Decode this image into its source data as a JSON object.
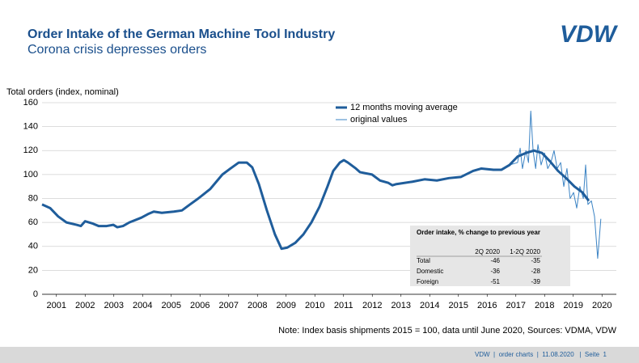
{
  "header": {
    "title": "Order Intake of the German Machine Tool Industry",
    "subtitle": "Corona crisis depresses orders",
    "logo": "VDW"
  },
  "chart_data": {
    "type": "line",
    "y_label": "Total orders (index, nominal)",
    "xlim": [
      2001,
      2021
    ],
    "ylim": [
      0,
      160
    ],
    "yticks": [
      0,
      20,
      40,
      60,
      80,
      100,
      120,
      140,
      160
    ],
    "xticks": [
      {
        "value": 2001.5,
        "label": "2001"
      },
      {
        "value": 2002.5,
        "label": "2002"
      },
      {
        "value": 2003.5,
        "label": "2003"
      },
      {
        "value": 2004.5,
        "label": "2004"
      },
      {
        "value": 2005.5,
        "label": "2005"
      },
      {
        "value": 2006.5,
        "label": "2006"
      },
      {
        "value": 2007.5,
        "label": "2007"
      },
      {
        "value": 2008.5,
        "label": "2008"
      },
      {
        "value": 2009.5,
        "label": "2009"
      },
      {
        "value": 2010.5,
        "label": "2010"
      },
      {
        "value": 2011.5,
        "label": "2011"
      },
      {
        "value": 2012.5,
        "label": "2012"
      },
      {
        "value": 2013.5,
        "label": "2013"
      },
      {
        "value": 2014.5,
        "label": "2014"
      },
      {
        "value": 2015.5,
        "label": "2015"
      },
      {
        "value": 2016.5,
        "label": "2016"
      },
      {
        "value": 2017.5,
        "label": "2017"
      },
      {
        "value": 2018.5,
        "label": "2018"
      },
      {
        "value": 2019.5,
        "label": "2019"
      },
      {
        "value": 2020.5,
        "label": "2020"
      }
    ],
    "grid": true,
    "series": [
      {
        "name": "12 months moving average",
        "color": "#1f5d9b",
        "width": 3,
        "x": [
          2001.0,
          2001.28,
          2001.56,
          2001.85,
          2002.2,
          2002.35,
          2002.5,
          2002.77,
          2002.97,
          2003.25,
          2003.48,
          2003.62,
          2003.82,
          2004.04,
          2004.46,
          2004.69,
          2004.89,
          2005.17,
          2005.59,
          2005.87,
          2006.15,
          2006.44,
          2006.86,
          2007.28,
          2007.56,
          2007.85,
          2008.13,
          2008.32,
          2008.55,
          2008.83,
          2009.11,
          2009.34,
          2009.54,
          2009.82,
          2010.1,
          2010.38,
          2010.66,
          2010.94,
          2011.14,
          2011.37,
          2011.51,
          2011.65,
          2011.93,
          2012.07,
          2012.49,
          2012.77,
          2013.06,
          2013.2,
          2013.34,
          2013.9,
          2014.32,
          2014.75,
          2015.17,
          2015.59,
          2016.01,
          2016.3,
          2016.72,
          2017.0,
          2017.28,
          2017.56,
          2017.85,
          2018.13,
          2018.41,
          2018.69,
          2018.97,
          2019.25,
          2019.54,
          2019.82,
          2020.04
        ],
        "values": [
          75,
          72,
          65,
          60,
          58,
          57,
          61,
          59,
          57,
          57,
          58,
          56,
          57,
          60,
          64,
          67,
          69,
          68,
          69,
          70,
          75,
          80,
          88,
          100,
          105,
          110,
          110,
          106,
          92,
          70,
          50,
          38,
          39,
          43,
          50,
          60,
          73,
          90,
          103,
          110,
          112,
          110,
          105,
          102,
          100,
          95,
          93,
          91,
          92,
          94,
          96,
          95,
          97,
          98,
          103,
          105,
          104,
          104,
          108,
          115,
          118,
          120,
          118,
          111,
          103,
          97,
          90,
          85,
          78
        ]
      },
      {
        "name": "original values",
        "color": "#3b83c4",
        "width": 1,
        "x": [
          2016.72,
          2017.0,
          2017.28,
          2017.56,
          2017.65,
          2017.73,
          2017.85,
          2017.94,
          2018.02,
          2018.1,
          2018.19,
          2018.27,
          2018.38,
          2018.5,
          2018.61,
          2018.72,
          2018.83,
          2018.94,
          2019.06,
          2019.17,
          2019.28,
          2019.39,
          2019.51,
          2019.62,
          2019.73,
          2019.85,
          2019.93,
          2020.01,
          2020.13,
          2020.24,
          2020.35,
          2020.46
        ],
        "values": [
          104,
          104,
          108,
          110,
          122,
          105,
          120,
          110,
          153,
          120,
          105,
          125,
          108,
          118,
          105,
          110,
          120,
          105,
          110,
          90,
          105,
          80,
          85,
          72,
          90,
          80,
          108,
          75,
          78,
          65,
          30,
          63
        ]
      }
    ],
    "legend": "top-center"
  },
  "table": {
    "title": "Order intake, % change to previous year",
    "columns": [
      "2Q 2020",
      "1-2Q 2020"
    ],
    "rows": [
      [
        "Total",
        "-46",
        "-35"
      ],
      [
        "Domestic",
        "-36",
        "-28"
      ],
      [
        "Foreign",
        "-51",
        "-39"
      ]
    ]
  },
  "note": "Note: Index basis shipments 2015 = 100, data until June 2020, Sources: VDMA, VDW",
  "footer": "VDW  |  order charts  |  11.08.2020   |  Seite  1"
}
